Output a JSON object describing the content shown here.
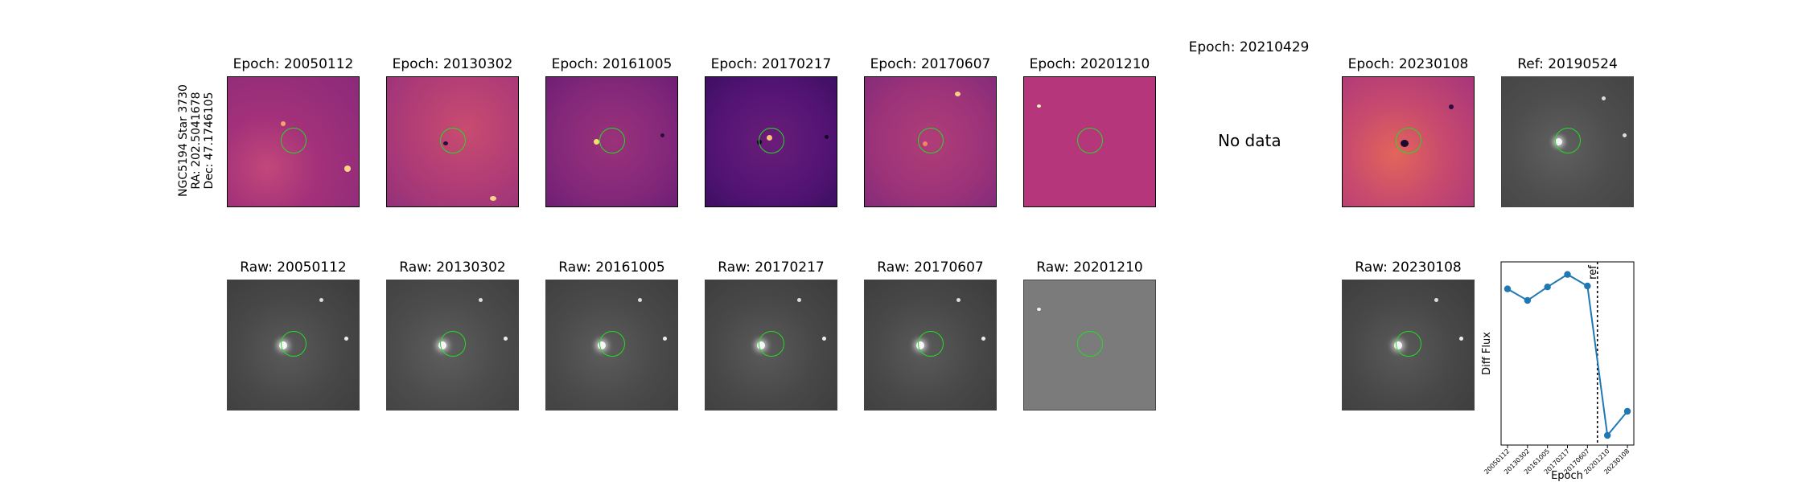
{
  "side_label": {
    "line1": "NGC5194 Star 3730",
    "line2": "RA: 202.5041678",
    "line3": "Dec: 47.1746105"
  },
  "diff_panels": [
    {
      "title": "Epoch: 20050112",
      "style": "magma"
    },
    {
      "title": "Epoch: 20130302",
      "style": "magma"
    },
    {
      "title": "Epoch: 20161005",
      "style": "magma"
    },
    {
      "title": "Epoch: 20170217",
      "style": "magma-dark"
    },
    {
      "title": "Epoch: 20170607",
      "style": "magma"
    },
    {
      "title": "Epoch: 20201210",
      "style": "flat"
    },
    {
      "title": "Epoch: 20210429",
      "no_data": "No data"
    },
    {
      "title": "Epoch: 20230108",
      "style": "magma-bright"
    },
    {
      "title": "Ref: 20190524",
      "style": "gray"
    }
  ],
  "raw_panels": [
    {
      "title": "Raw: 20050112"
    },
    {
      "title": "Raw: 20130302"
    },
    {
      "title": "Raw: 20161005"
    },
    {
      "title": "Raw: 20170217"
    },
    {
      "title": "Raw: 20170607"
    },
    {
      "title": "Raw: 20201210",
      "style": "flat"
    },
    {
      "title": "Raw: 20230108"
    }
  ],
  "colors": {
    "ring": "#22dd22",
    "line": "#1f77b4",
    "magma_mid": "#b23c78",
    "flat_diff": "#b5367a",
    "gray_bg": "#4a4a4a"
  },
  "chart_data": {
    "type": "line",
    "categories": [
      "20050112",
      "20130302",
      "20161005",
      "20170217",
      "20170607",
      "20201210",
      "20230108"
    ],
    "values": [
      0.72,
      0.6,
      0.74,
      0.87,
      0.75,
      -0.8,
      -0.55
    ],
    "ylabel": "Diff Flux",
    "xlabel": "Epoch",
    "ref_label": "ref",
    "ref_position_between": [
      "20170607",
      "20201210"
    ],
    "ylim": [
      -0.9,
      1.0
    ],
    "grid": false
  }
}
